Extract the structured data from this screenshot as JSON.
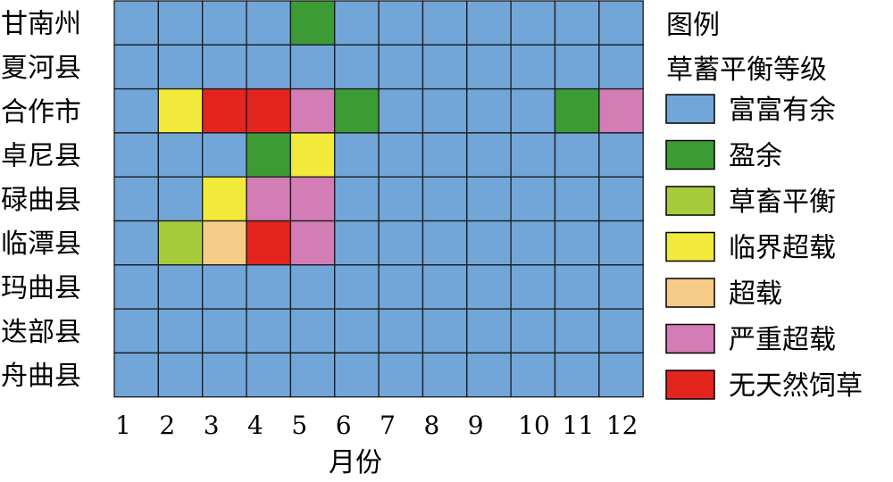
{
  "chart_data": {
    "type": "heatmap",
    "title": "",
    "xlabel": "月份",
    "ylabel": "",
    "x_categories": [
      "1",
      "2",
      "3",
      "4",
      "5",
      "6",
      "7",
      "8",
      "9",
      "10",
      "11",
      "12"
    ],
    "y_categories": [
      "甘南州",
      "夏河县",
      "合作市",
      "卓尼县",
      "碌曲县",
      "临潭县",
      "玛曲县",
      "迭部县",
      "舟曲县"
    ],
    "legend": {
      "title_line1": "图例",
      "title_line2": "草蓄平衡等级",
      "placement": "right",
      "levels": [
        {
          "name": "富富有余",
          "color": "#73a6d8"
        },
        {
          "name": "盈余",
          "color": "#3d9b35"
        },
        {
          "name": "草畜平衡",
          "color": "#a6cc3d"
        },
        {
          "name": "临界超载",
          "color": "#f2ea3a"
        },
        {
          "name": "超载",
          "color": "#f6cb85"
        },
        {
          "name": "严重超载",
          "color": "#d37cb5"
        },
        {
          "name": "无天然饲草",
          "color": "#e3241f"
        }
      ]
    },
    "grid_color": "#1a1a1a",
    "values": [
      [
        0,
        0,
        0,
        0,
        1,
        0,
        0,
        0,
        0,
        0,
        0,
        0
      ],
      [
        0,
        0,
        0,
        0,
        0,
        0,
        0,
        0,
        0,
        0,
        0,
        0
      ],
      [
        0,
        3,
        6,
        6,
        5,
        1,
        0,
        0,
        0,
        0,
        1,
        5
      ],
      [
        0,
        0,
        0,
        1,
        3,
        0,
        0,
        0,
        0,
        0,
        0,
        0
      ],
      [
        0,
        0,
        3,
        5,
        5,
        0,
        0,
        0,
        0,
        0,
        0,
        0
      ],
      [
        0,
        2,
        4,
        6,
        5,
        0,
        0,
        0,
        0,
        0,
        0,
        0
      ],
      [
        0,
        0,
        0,
        0,
        0,
        0,
        0,
        0,
        0,
        0,
        0,
        0
      ],
      [
        0,
        0,
        0,
        0,
        0,
        0,
        0,
        0,
        0,
        0,
        0,
        0
      ],
      [
        0,
        0,
        0,
        0,
        0,
        0,
        0,
        0,
        0,
        0,
        0,
        0
      ]
    ]
  }
}
